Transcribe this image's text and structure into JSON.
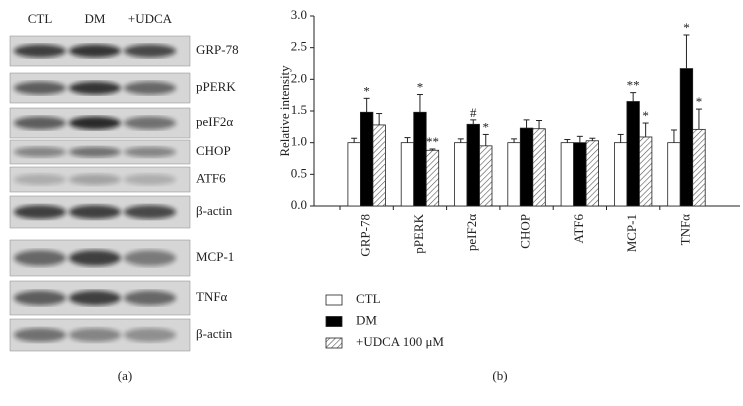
{
  "blot": {
    "lanes": [
      "CTL",
      "DM",
      "+UDCA"
    ],
    "bands": [
      "GRP-78",
      "pPERK",
      "peIF2α",
      "CHOP",
      "ATF6",
      "β-actin",
      "MCP-1",
      "TNFα",
      "β-actin"
    ],
    "label": "(a)"
  },
  "chart_data": {
    "type": "bar",
    "ylabel": "Relative intensity",
    "label": "(b)",
    "categories": [
      "GRP-78",
      "pPERK",
      "peIF2α",
      "CHOP",
      "ATF6",
      "MCP-1",
      "TNFα"
    ],
    "series": [
      {
        "name": "CTL",
        "color": "#ffffff",
        "hatch": false,
        "values": [
          1.0,
          1.0,
          1.0,
          1.0,
          1.0,
          1.0,
          1.0
        ],
        "errors": [
          0.07,
          0.08,
          0.06,
          0.06,
          0.05,
          0.13,
          0.2
        ],
        "significance": [
          null,
          null,
          null,
          null,
          null,
          null,
          null
        ]
      },
      {
        "name": "DM",
        "color": "#000000",
        "hatch": false,
        "values": [
          1.48,
          1.48,
          1.29,
          1.23,
          1.0,
          1.65,
          2.17
        ],
        "errors": [
          0.22,
          0.28,
          0.07,
          0.13,
          0.1,
          0.14,
          0.53
        ],
        "significance": [
          "*",
          "*",
          "#",
          null,
          null,
          "**",
          "*"
        ]
      },
      {
        "name": "+UDCA 100 μM",
        "color": "#ffffff",
        "hatch": true,
        "values": [
          1.28,
          0.88,
          0.95,
          1.22,
          1.03,
          1.09,
          1.21
        ],
        "errors": [
          0.18,
          0.02,
          0.18,
          0.13,
          0.04,
          0.22,
          0.32
        ],
        "significance": [
          null,
          "**",
          "*",
          null,
          null,
          "*",
          "*"
        ]
      }
    ],
    "ylim": [
      0,
      3.0
    ],
    "yticks": [
      {
        "value": 0,
        "label": "0.0"
      },
      {
        "value": 0.5,
        "label": "0.5"
      },
      {
        "value": 1.0,
        "label": "1.0"
      },
      {
        "value": 1.5,
        "label": "1.5"
      },
      {
        "value": 2.0,
        "label": "2.0"
      },
      {
        "value": 2.5,
        "label": "2.5"
      },
      {
        "value": 3.0,
        "label": "3.0"
      }
    ]
  }
}
